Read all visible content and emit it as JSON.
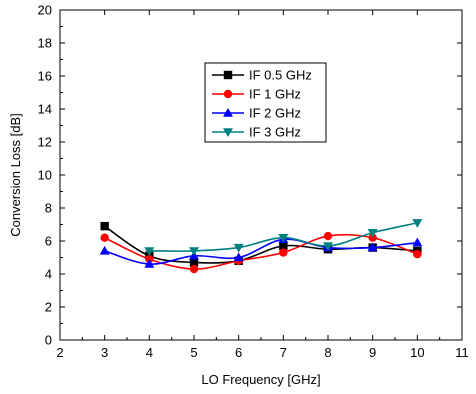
{
  "chart_data": {
    "type": "line",
    "title": "",
    "xlabel": "LO Frequency [GHz]",
    "ylabel": "Conversion Loss [dB]",
    "xlim": [
      2,
      11
    ],
    "ylim": [
      0,
      20
    ],
    "xticks": [
      2,
      3,
      4,
      5,
      6,
      7,
      8,
      9,
      10,
      11
    ],
    "yticks": [
      0,
      2,
      4,
      6,
      8,
      10,
      12,
      14,
      16,
      18,
      20
    ],
    "grid": false,
    "legend_position": "top-center",
    "x": [
      3,
      4,
      5,
      6,
      7,
      8,
      9,
      10
    ],
    "series": [
      {
        "name": "IF 0.5 GHz",
        "color": "#000000",
        "marker": "square",
        "x": [
          3,
          4,
          5,
          6,
          7,
          8,
          9,
          10
        ],
        "values": [
          6.9,
          5.1,
          4.7,
          4.8,
          5.7,
          5.5,
          5.6,
          5.4
        ]
      },
      {
        "name": "IF 1 GHz",
        "color": "#ff0000",
        "marker": "circle",
        "x": [
          3,
          4,
          5,
          6,
          7,
          8,
          9,
          10
        ],
        "values": [
          6.2,
          4.9,
          4.3,
          4.8,
          5.3,
          6.3,
          6.2,
          5.2
        ]
      },
      {
        "name": "IF 2 GHz",
        "color": "#0000ff",
        "marker": "triangle-up",
        "x": [
          3,
          4,
          5,
          6,
          7,
          8,
          9,
          10
        ],
        "values": [
          5.4,
          4.6,
          5.1,
          5.0,
          6.1,
          5.6,
          5.6,
          5.9
        ]
      },
      {
        "name": "IF 3 GHz",
        "color": "#008080",
        "marker": "triangle-down",
        "x": [
          4,
          5,
          6,
          7,
          8,
          9,
          10
        ],
        "values": [
          5.4,
          5.4,
          5.6,
          6.2,
          5.7,
          6.5,
          7.1
        ]
      }
    ]
  }
}
